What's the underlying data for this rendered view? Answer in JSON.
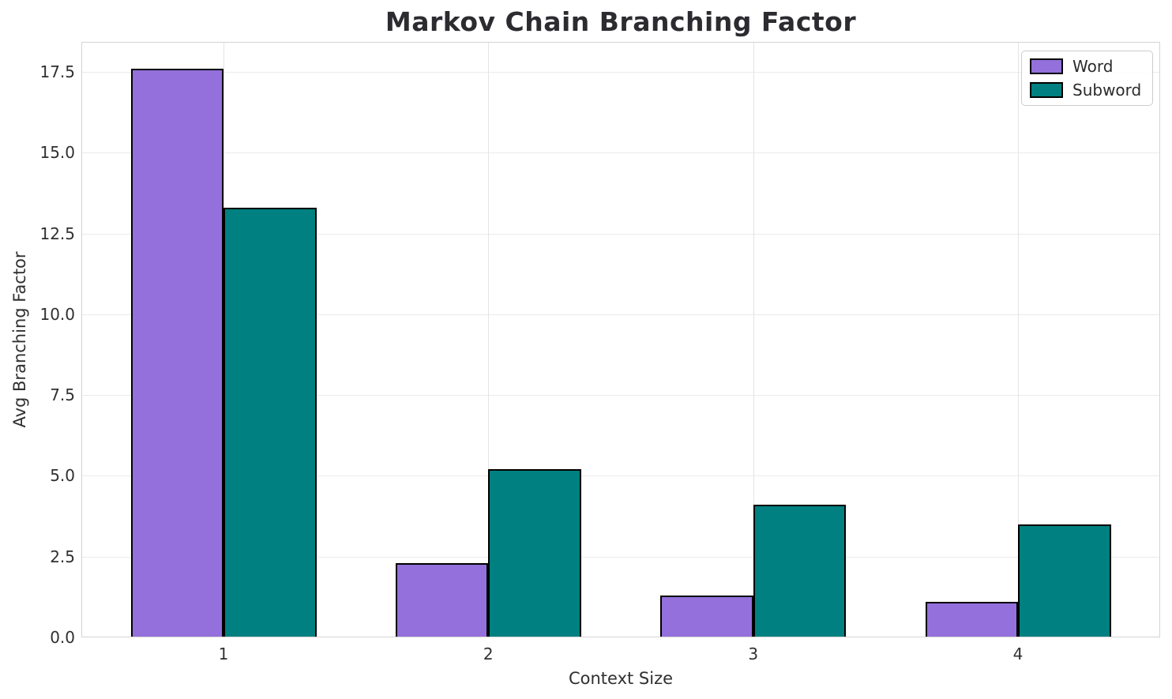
{
  "chart_data": {
    "type": "bar",
    "title": "Markov Chain Branching Factor",
    "xlabel": "Context Size",
    "ylabel": "Avg Branching Factor",
    "categories": [
      "1",
      "2",
      "3",
      "4"
    ],
    "series": [
      {
        "name": "Word",
        "color": "#9370DB",
        "values": [
          17.6,
          2.3,
          1.3,
          1.1
        ]
      },
      {
        "name": "Subword",
        "color": "#008080",
        "values": [
          13.3,
          5.2,
          4.1,
          3.5
        ]
      }
    ],
    "ylim": [
      0,
      18.43
    ],
    "yticks": [
      0.0,
      2.5,
      5.0,
      7.5,
      10.0,
      12.5,
      15.0,
      17.5
    ],
    "ytick_labels": [
      "0.0",
      "2.5",
      "5.0",
      "7.5",
      "10.0",
      "12.5",
      "15.0",
      "17.5"
    ],
    "bar_edge_color": "#000000",
    "grid": true,
    "grid_color": "#e8e8e8",
    "legend_position": "upper right",
    "background_color": "#ffffff",
    "text_color": "#303030",
    "spine_color": "#d4d4d4"
  }
}
